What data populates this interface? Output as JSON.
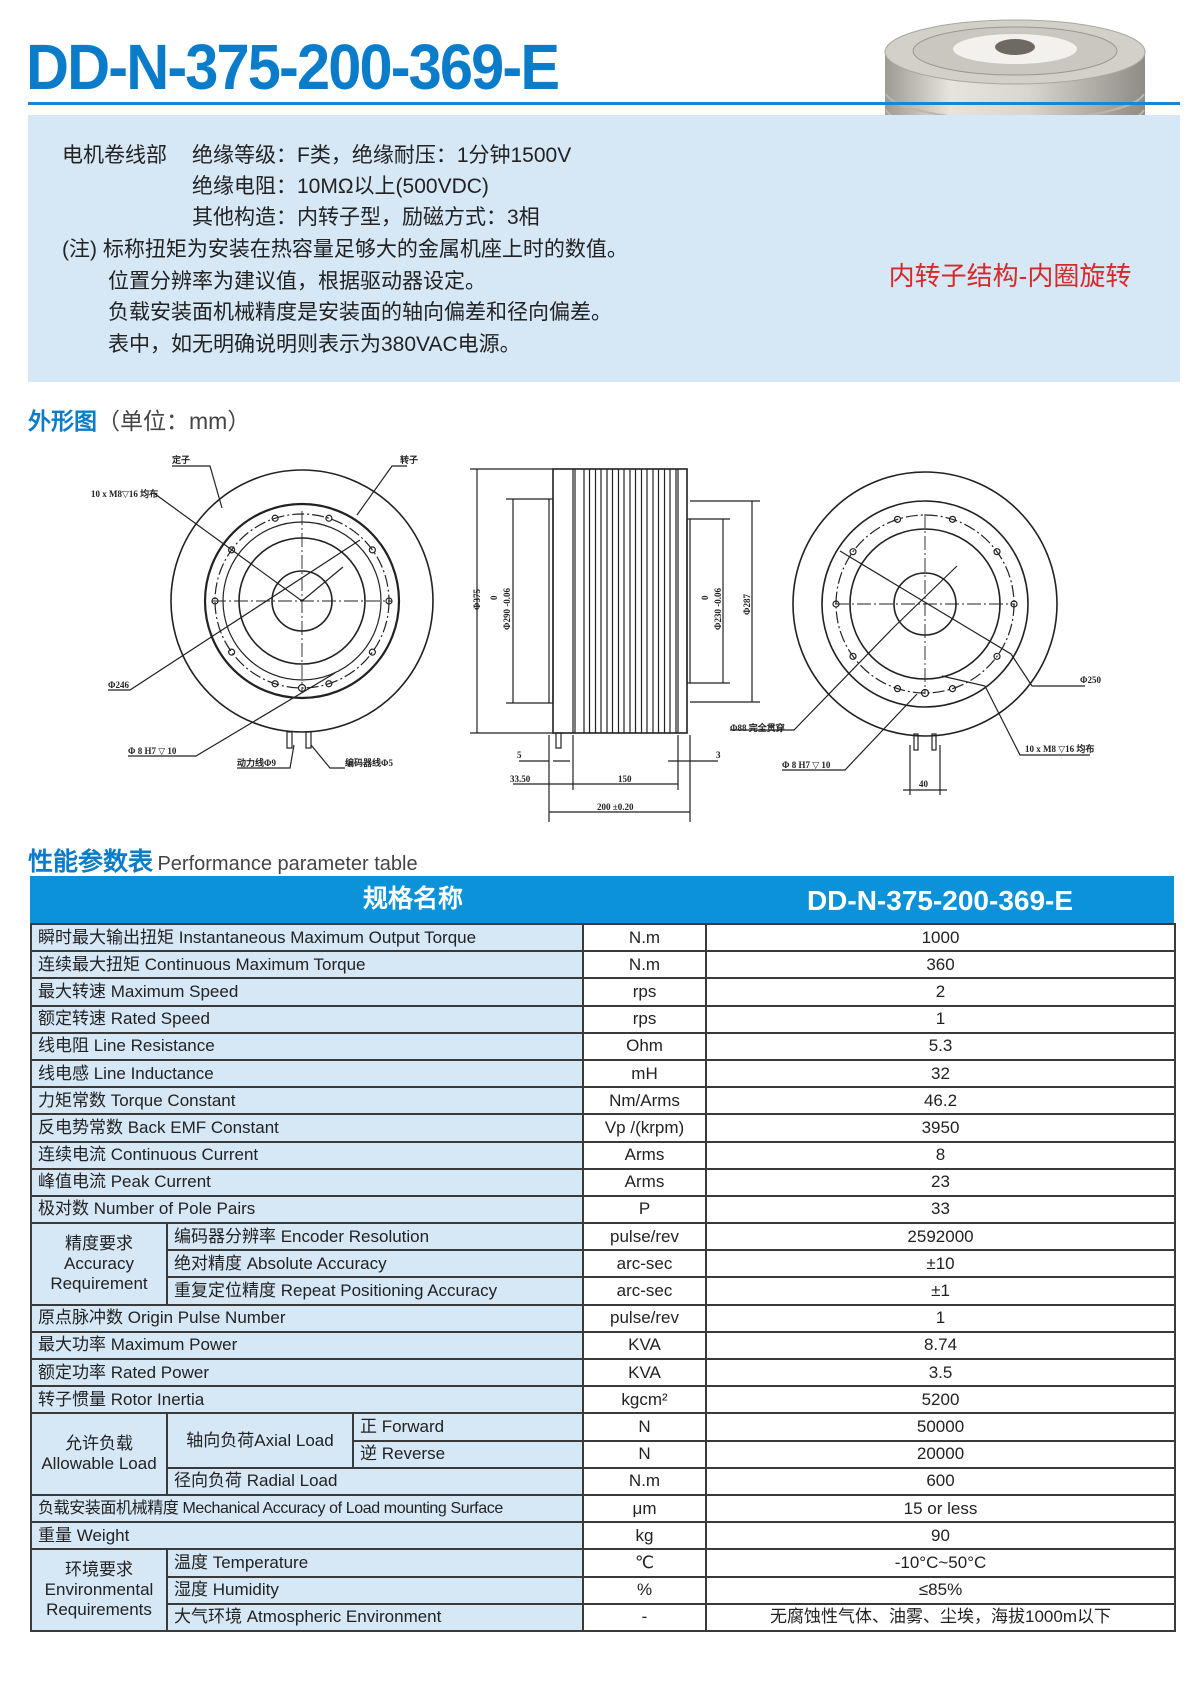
{
  "header": {
    "title": "DD-N-375-200-369-E"
  },
  "info": {
    "lines": [
      "电机卷线部",
      "绝缘等级：F类，绝缘耐压：1分钟1500V",
      "绝缘电阻：10MΩ以上(500VDC)",
      "其他构造：内转子型，励磁方式：3相",
      "(注) 标称扭矩为安装在热容量足够大的金属机座上时的数值。",
      "位置分辨率为建议值，根据驱动器设定。",
      "负载安装面机械精度是安装面的轴向偏差和径向偏差。",
      "表中，如无明确说明则表示为380VAC电源。"
    ],
    "caption": "内转子结构-内圈旋转"
  },
  "outline": {
    "title_bold": "外形图",
    "title_rest": "（单位：mm）"
  },
  "drawing": {
    "left": {
      "stator": "定子",
      "rotor": "转子",
      "bolts": "10 x  M8▽16  均布",
      "d246": "Φ246",
      "pin": "Φ 8  H7  ▽ 10",
      "power": "动力线Φ9",
      "encoder": "编码器线Φ5"
    },
    "side": {
      "d375": "Φ375",
      "tol1_top": "0",
      "d290": "Φ290 -0.06",
      "tol2_top": "0",
      "d230": "Φ230 -0.06",
      "d287": "Φ287",
      "dim5": "5",
      "dim3": "3",
      "dim3350": "33.50",
      "dim150": "150",
      "dim200": "200  ±0.20"
    },
    "right": {
      "bore": "Φ88  完全贯穿",
      "d250": "Φ250",
      "bolts": "10 x  M8 ▽16  均布",
      "pin": "Φ 8  H7  ▽ 10",
      "dim40": "40"
    }
  },
  "perf": {
    "title_bold": "性能参数表",
    "title_rest": "Performance parameter table"
  },
  "table": {
    "head_name": "规格名称",
    "head_model": "DD-N-375-200-369-E",
    "groups": {
      "accuracy": "精度要求 Accuracy Requirement",
      "load": "允许负载 Allowable Load",
      "axial": "轴向负荷Axial Load",
      "env": "环境要求 Environmental Requirements"
    },
    "rows": [
      {
        "label": "瞬时最大输出扭矩  Instantaneous Maximum Output Torque",
        "unit": "N.m",
        "value": "1000"
      },
      {
        "label": "连续最大扭矩 Continuous Maximum Torque",
        "unit": "N.m",
        "value": "360"
      },
      {
        "label": "最大转速 Maximum Speed",
        "unit": "rps",
        "value": "2"
      },
      {
        "label": "额定转速 Rated Speed",
        "unit": "rps",
        "value": "1"
      },
      {
        "label": "线电阻 Line Resistance",
        "unit": "Ohm",
        "value": "5.3"
      },
      {
        "label": "线电感 Line Inductance",
        "unit": "mH",
        "value": "32"
      },
      {
        "label": "力矩常数 Torque Constant",
        "unit": "Nm/Arms",
        "value": "46.2"
      },
      {
        "label": "反电势常数 Back EMF Constant",
        "unit": "Vp /(krpm)",
        "value": "3950"
      },
      {
        "label": "连续电流 Continuous Current",
        "unit": "Arms",
        "value": "8"
      },
      {
        "label": "峰值电流 Peak Current",
        "unit": "Arms",
        "value": "23"
      },
      {
        "label": "极对数 Number of Pole Pairs",
        "unit": "P",
        "value": "33"
      },
      {
        "label": "编码器分辨率 Encoder Resolution",
        "unit": "pulse/rev",
        "value": "2592000"
      },
      {
        "label": "绝对精度 Absolute Accuracy",
        "unit": "arc-sec",
        "value": "±10"
      },
      {
        "label": "重复定位精度 Repeat Positioning Accuracy",
        "unit": "arc-sec",
        "value": "±1"
      },
      {
        "label": "原点脉冲数 Origin Pulse Number",
        "unit": "pulse/rev",
        "value": "1"
      },
      {
        "label": "最大功率 Maximum Power",
        "unit": "KVA",
        "value": "8.74"
      },
      {
        "label": "额定功率 Rated Power",
        "unit": "KVA",
        "value": "3.5"
      },
      {
        "label": "转子惯量  Rotor Inertia",
        "unit": "kgcm²",
        "value": "5200"
      },
      {
        "label": "正 Forward",
        "unit": "N",
        "value": "50000"
      },
      {
        "label": "逆 Reverse",
        "unit": "N",
        "value": "20000"
      },
      {
        "label": "径向负荷 Radial Load",
        "unit": "N.m",
        "value": "600"
      },
      {
        "label": "负载安装面机械精度 Mechanical Accuracy of Load mounting Surface",
        "unit": "μm",
        "value": "15 or less"
      },
      {
        "label": "重量 Weight",
        "unit": "kg",
        "value": "90"
      },
      {
        "label": "温度 Temperature",
        "unit": "℃",
        "value": "-10°C~50°C"
      },
      {
        "label": "湿度 Humidity",
        "unit": "%",
        "value": "≤85%"
      },
      {
        "label": "大气环境 Atmospheric Environment",
        "unit": "-",
        "value": "无腐蚀性气体、油雾、尘埃，海拔1000m以下"
      }
    ]
  },
  "colors": {
    "brand_blue": "#0a7cc9",
    "header_blue": "#0b92d8",
    "light_blue": "#d6e7f6",
    "caption_red": "#d62a2a"
  }
}
